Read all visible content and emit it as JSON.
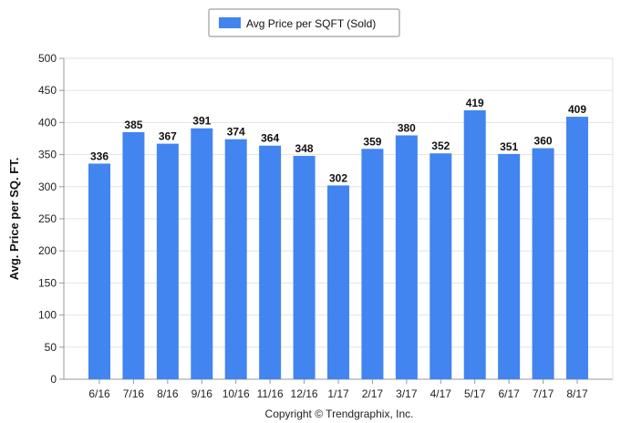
{
  "chart_data": {
    "type": "bar",
    "title": "",
    "xlabel": "",
    "ylabel": "Avg. Price per SQ. FT.",
    "categories": [
      "6/16",
      "7/16",
      "8/16",
      "9/16",
      "10/16",
      "11/16",
      "12/16",
      "1/17",
      "2/17",
      "3/17",
      "4/17",
      "5/17",
      "6/17",
      "7/17",
      "8/17"
    ],
    "series": [
      {
        "name": "Avg Price per SQFT (Sold)",
        "values": [
          336,
          385,
          367,
          391,
          374,
          364,
          348,
          302,
          359,
          380,
          352,
          419,
          351,
          360,
          409
        ]
      }
    ],
    "ylim": [
      0,
      500
    ],
    "yticks": [
      0,
      50,
      100,
      150,
      200,
      250,
      300,
      350,
      400,
      450,
      500
    ],
    "grid": "horizontal",
    "legend_position": "top-center",
    "bar_color": "#4285f0",
    "footer": "Copyright © Trendgraphix, Inc."
  }
}
